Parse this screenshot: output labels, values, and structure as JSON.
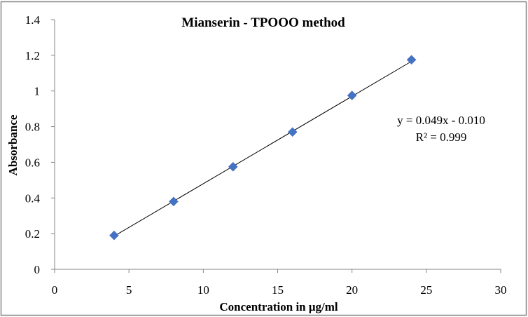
{
  "chart_data": {
    "type": "scatter",
    "title": "Mianserin - TPOOO method",
    "xlabel": "Concentration in μg/ml",
    "ylabel": "Absorbance",
    "xlim": [
      0,
      30
    ],
    "ylim": [
      0,
      1.4
    ],
    "x_ticks": [
      0,
      5,
      10,
      15,
      20,
      25,
      30
    ],
    "y_ticks": [
      0,
      0.2,
      0.4,
      0.6,
      0.8,
      1,
      1.2,
      1.4
    ],
    "x_tick_labels": [
      "0",
      "5",
      "10",
      "15",
      "20",
      "25",
      "30"
    ],
    "y_tick_labels": [
      "0",
      "0.2",
      "0.4",
      "0.6",
      "0.8",
      "1",
      "1.2",
      "1.4"
    ],
    "grid": false,
    "legend": "none",
    "series": [
      {
        "name": "Absorbance",
        "marker": "diamond",
        "color": "#4472C4",
        "x": [
          4,
          8,
          12,
          16,
          20,
          24
        ],
        "y": [
          0.19,
          0.38,
          0.575,
          0.77,
          0.975,
          1.175
        ]
      }
    ],
    "trendline": {
      "type": "linear",
      "slope": 0.049,
      "intercept": -0.01,
      "x_range": [
        4,
        24
      ],
      "color": "#000000"
    },
    "annotations": {
      "equation": "y = 0.049x - 0.010",
      "r_squared": "R² = 0.999"
    }
  }
}
